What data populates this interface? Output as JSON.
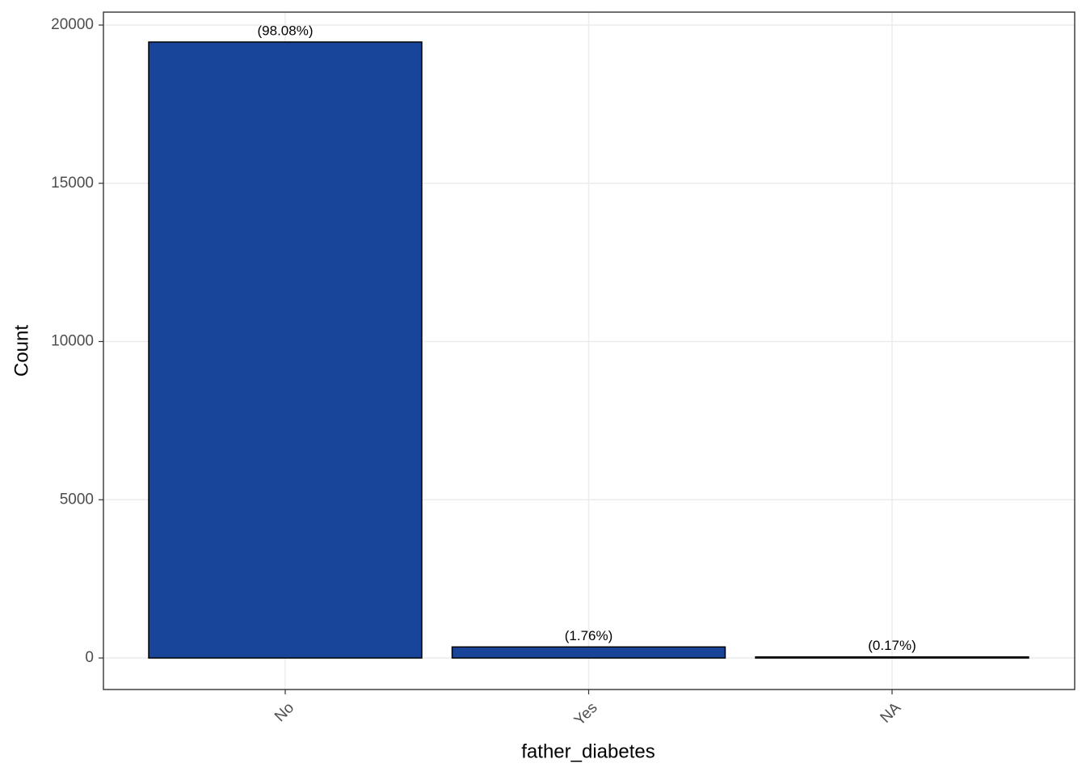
{
  "chart_data": {
    "type": "bar",
    "x_label": "father_diabetes",
    "y_label": "Count",
    "categories": [
      "No",
      "Yes",
      "NA"
    ],
    "values": [
      19464,
      349,
      34
    ],
    "percent_labels": [
      "(98.08%)",
      "(1.76%)",
      "(0.17%)"
    ],
    "color": "#18449a",
    "ylim": [
      -996,
      20409
    ],
    "yticks": [
      0,
      5000,
      10000,
      15000,
      20000
    ],
    "grid": true
  }
}
